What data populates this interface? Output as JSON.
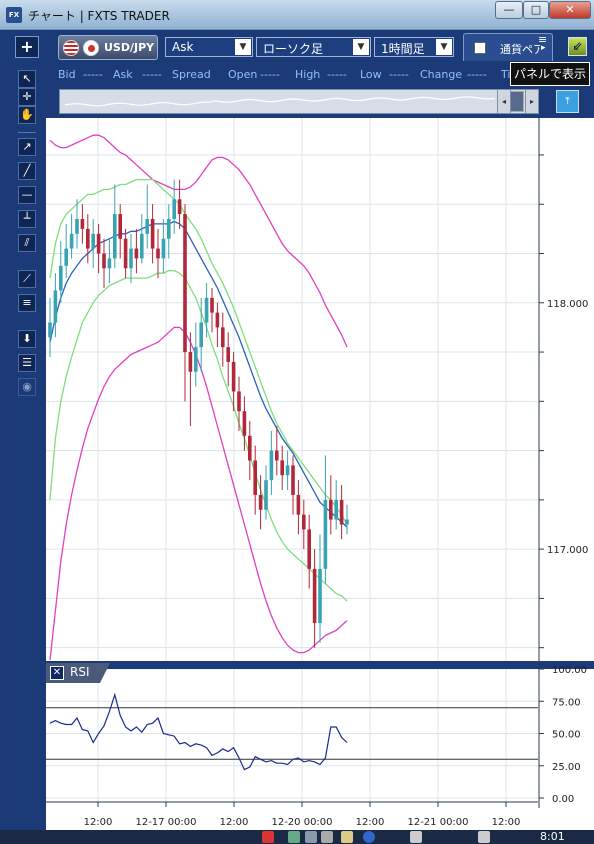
{
  "window": {
    "title": "チャート | FXTS TRADER",
    "icon": "fx-app-icon",
    "buttons": {
      "minimize": "—",
      "maximize": "□",
      "close": "✕"
    }
  },
  "toolbar": {
    "add_label": "+",
    "symbol": "USD/JPY",
    "price_type": "Ask",
    "chart_type": "ローソク足",
    "period": "1時間足",
    "pair_tab_label": "通貨ペア",
    "tooltip": "パネルで表示",
    "dropdown_glyph": "▼"
  },
  "quote": {
    "bid_label": "Bid",
    "bid": "-----",
    "ask_label": "Ask",
    "ask": "-----",
    "spread_label": "Spread",
    "open_label": "Open",
    "open": "-----",
    "high_label": "High",
    "high": "-----",
    "low_label": "Low",
    "low": "-----",
    "change_label": "Change",
    "change": "-----",
    "time_label": "Ti"
  },
  "navigator": {
    "left": "◂",
    "right": "▸"
  },
  "tools": [
    "cursor",
    "crosshair",
    "hand",
    "trendline-ray",
    "line",
    "hline",
    "vline",
    "channel",
    "fib-fan",
    "fib-retracement",
    "download",
    "list",
    "camera"
  ],
  "rsi": {
    "label": "RSI",
    "close": "✕"
  },
  "chart_data": {
    "type": "candlestick",
    "price_axis_ticks": [
      "118.000",
      "117.000"
    ],
    "price_range": [
      116.55,
      118.75
    ],
    "rsi_axis_ticks": [
      "100.00",
      "75.00",
      "50.00",
      "25.00",
      "0.00"
    ],
    "rsi_range": [
      0,
      100
    ],
    "time_labels": [
      "12:00",
      "12-17 00:00",
      "12:00",
      "12-20 00:00",
      "12:00",
      "12-21 00:00",
      "12:00"
    ],
    "colors": {
      "up": "#3aa3b3",
      "down": "#b0283a",
      "sma": "#2a62b8",
      "band1": "#7be07b",
      "band2": "#e040c0",
      "rsi": "#1a2a8c"
    },
    "candles": [
      [
        117.86,
        117.92,
        118.02,
        117.78
      ],
      [
        117.92,
        118.05,
        118.12,
        117.86
      ],
      [
        118.05,
        118.15,
        118.25,
        118.0
      ],
      [
        118.15,
        118.22,
        118.32,
        118.1
      ],
      [
        118.22,
        118.28,
        118.36,
        118.18
      ],
      [
        118.28,
        118.34,
        118.42,
        118.22
      ],
      [
        118.34,
        118.3,
        118.4,
        118.24
      ],
      [
        118.3,
        118.22,
        118.36,
        118.16
      ],
      [
        118.22,
        118.28,
        118.34,
        118.14
      ],
      [
        118.28,
        118.2,
        118.32,
        118.12
      ],
      [
        118.2,
        118.14,
        118.26,
        118.06
      ],
      [
        118.14,
        118.18,
        118.26,
        118.08
      ],
      [
        118.18,
        118.36,
        118.48,
        118.14
      ],
      [
        118.36,
        118.26,
        118.4,
        118.18
      ],
      [
        118.26,
        118.14,
        118.3,
        118.1
      ],
      [
        118.14,
        118.22,
        118.28,
        118.08
      ],
      [
        118.22,
        118.18,
        118.3,
        118.12
      ],
      [
        118.18,
        118.28,
        118.36,
        118.16
      ],
      [
        118.28,
        118.34,
        118.48,
        118.22
      ],
      [
        118.34,
        118.22,
        118.4,
        118.16
      ],
      [
        118.22,
        118.18,
        118.3,
        118.1
      ],
      [
        118.18,
        118.26,
        118.34,
        118.12
      ],
      [
        118.26,
        118.34,
        118.4,
        118.18
      ],
      [
        118.34,
        118.42,
        118.5,
        118.28
      ],
      [
        118.42,
        118.36,
        118.5,
        118.3
      ],
      [
        118.36,
        117.8,
        118.4,
        117.6
      ],
      [
        117.8,
        117.72,
        117.88,
        117.5
      ],
      [
        117.72,
        117.82,
        117.92,
        117.66
      ],
      [
        117.82,
        117.92,
        118.02,
        117.72
      ],
      [
        117.92,
        118.02,
        118.08,
        117.86
      ],
      [
        118.02,
        117.96,
        118.06,
        117.88
      ],
      [
        117.96,
        117.9,
        118.0,
        117.82
      ],
      [
        117.9,
        117.82,
        117.96,
        117.74
      ],
      [
        117.82,
        117.76,
        117.88,
        117.66
      ],
      [
        117.76,
        117.64,
        117.8,
        117.56
      ],
      [
        117.64,
        117.56,
        117.7,
        117.48
      ],
      [
        117.56,
        117.46,
        117.62,
        117.4
      ],
      [
        117.46,
        117.36,
        117.52,
        117.28
      ],
      [
        117.36,
        117.22,
        117.42,
        117.14
      ],
      [
        117.22,
        117.16,
        117.3,
        117.08
      ],
      [
        117.16,
        117.28,
        117.34,
        117.12
      ],
      [
        117.28,
        117.4,
        117.48,
        117.22
      ],
      [
        117.4,
        117.36,
        117.5,
        117.3
      ],
      [
        117.36,
        117.3,
        117.42,
        117.24
      ],
      [
        117.3,
        117.34,
        117.4,
        117.24
      ],
      [
        117.34,
        117.22,
        117.38,
        117.14
      ],
      [
        117.22,
        117.14,
        117.28,
        117.06
      ],
      [
        117.14,
        117.08,
        117.2,
        117.0
      ],
      [
        117.08,
        116.92,
        117.14,
        116.84
      ],
      [
        116.92,
        116.7,
        117.0,
        116.6
      ],
      [
        116.7,
        116.92,
        117.06,
        116.62
      ],
      [
        116.92,
        117.2,
        117.38,
        116.86
      ],
      [
        117.2,
        117.12,
        117.3,
        117.06
      ],
      [
        117.12,
        117.2,
        117.28,
        117.08
      ],
      [
        117.2,
        117.1,
        117.26,
        117.04
      ],
      [
        117.1,
        117.12,
        117.18,
        117.06
      ]
    ],
    "sma": [
      117.84,
      117.94,
      118.02,
      118.08,
      118.12,
      118.15,
      118.18,
      118.2,
      118.22,
      118.24,
      118.25,
      118.26,
      118.27,
      118.28,
      118.28,
      118.29,
      118.29,
      118.3,
      118.31,
      118.32,
      118.32,
      118.32,
      118.32,
      118.33,
      118.32,
      118.3,
      118.26,
      118.22,
      118.18,
      118.14,
      118.1,
      118.06,
      118.01,
      117.96,
      117.91,
      117.86,
      117.8,
      117.74,
      117.68,
      117.62,
      117.57,
      117.53,
      117.49,
      117.45,
      117.42,
      117.39,
      117.35,
      117.31,
      117.27,
      117.23,
      117.19,
      117.17,
      117.15,
      117.13,
      117.11,
      117.09
    ],
    "bb_upper1": [
      118.1,
      118.24,
      118.32,
      118.36,
      118.38,
      118.4,
      118.42,
      118.44,
      118.44,
      118.45,
      118.46,
      118.46,
      118.47,
      118.48,
      118.48,
      118.49,
      118.5,
      118.5,
      118.5,
      118.5,
      118.48,
      118.46,
      118.44,
      118.42,
      118.4,
      118.36,
      118.33,
      118.3,
      118.26,
      118.21,
      118.16,
      118.12,
      118.08,
      118.03,
      117.98,
      117.92,
      117.86,
      117.8,
      117.74,
      117.68,
      117.62,
      117.56,
      117.51,
      117.47,
      117.43,
      117.4,
      117.37,
      117.34,
      117.31,
      117.28,
      117.25,
      117.22,
      117.2,
      117.17,
      117.14,
      117.1
    ],
    "bb_lower1": [
      117.2,
      117.45,
      117.6,
      117.7,
      117.78,
      117.85,
      117.92,
      117.96,
      118.0,
      118.03,
      118.05,
      118.07,
      118.08,
      118.09,
      118.1,
      118.1,
      118.1,
      118.1,
      118.1,
      118.11,
      118.12,
      118.12,
      118.13,
      118.13,
      118.12,
      118.1,
      118.06,
      118.02,
      117.96,
      117.9,
      117.83,
      117.77,
      117.7,
      117.64,
      117.58,
      117.51,
      117.45,
      117.38,
      117.31,
      117.24,
      117.18,
      117.12,
      117.07,
      117.03,
      117.0,
      116.98,
      116.96,
      116.94,
      116.92,
      116.9,
      116.88,
      116.86,
      116.84,
      116.82,
      116.81,
      116.79
    ],
    "bb_upper2": [
      118.66,
      118.64,
      118.63,
      118.63,
      118.64,
      118.65,
      118.66,
      118.67,
      118.68,
      118.68,
      118.67,
      118.65,
      118.63,
      118.61,
      118.6,
      118.58,
      118.56,
      118.54,
      118.52,
      118.5,
      118.49,
      118.48,
      118.47,
      118.46,
      118.46,
      118.46,
      118.47,
      118.49,
      118.52,
      118.55,
      118.58,
      118.59,
      118.59,
      118.58,
      118.56,
      118.54,
      118.51,
      118.48,
      118.44,
      118.4,
      118.36,
      118.32,
      118.28,
      118.24,
      118.21,
      118.19,
      118.17,
      118.15,
      118.12,
      118.08,
      118.04,
      117.99,
      117.95,
      117.91,
      117.87,
      117.82
    ],
    "bb_lower2": [
      116.55,
      116.75,
      116.95,
      117.1,
      117.22,
      117.32,
      117.41,
      117.49,
      117.55,
      117.61,
      117.66,
      117.7,
      117.73,
      117.75,
      117.77,
      117.79,
      117.8,
      117.81,
      117.82,
      117.83,
      117.84,
      117.86,
      117.88,
      117.9,
      117.9,
      117.88,
      117.84,
      117.79,
      117.73,
      117.66,
      117.58,
      117.5,
      117.42,
      117.34,
      117.26,
      117.18,
      117.1,
      117.02,
      116.94,
      116.86,
      116.79,
      116.73,
      116.68,
      116.64,
      116.61,
      116.59,
      116.58,
      116.58,
      116.59,
      116.61,
      116.63,
      116.65,
      116.66,
      116.67,
      116.69,
      116.71
    ],
    "rsi": [
      58,
      60,
      58,
      57,
      57,
      62,
      53,
      52,
      43,
      50,
      56,
      67,
      80,
      64,
      55,
      52,
      55,
      51,
      57,
      58,
      62,
      50,
      49,
      48,
      42,
      43,
      40,
      42,
      41,
      39,
      33,
      35,
      38,
      36,
      39,
      31,
      22,
      24,
      32,
      30,
      28,
      29,
      27,
      27,
      26,
      30,
      31,
      28,
      29,
      28,
      26,
      31,
      55,
      55,
      47,
      43
    ]
  }
}
